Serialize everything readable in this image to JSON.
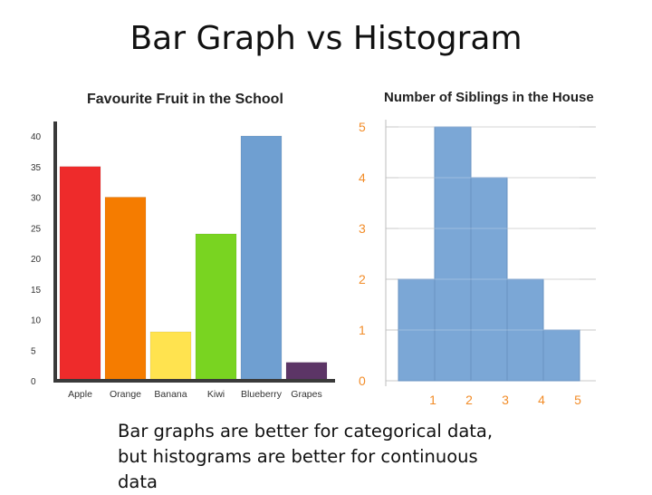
{
  "slide": {
    "title": "Bar Graph vs Histogram",
    "caption": "Bar graphs are better for categorical data, but histograms are better for continuous data"
  },
  "chart_data": [
    {
      "type": "bar",
      "title": "Favourite Fruit in the School",
      "categories": [
        "Apple",
        "Orange",
        "Banana",
        "Kiwi",
        "Blueberry",
        "Grapes"
      ],
      "values": [
        35,
        30,
        8,
        24,
        40,
        3
      ],
      "colors": [
        "#ee2b2b",
        "#f57c00",
        "#ffe34f",
        "#79d421",
        "#6f9fd1",
        "#5c3566"
      ],
      "ylim": [
        0,
        40
      ],
      "yticks": [
        "0",
        "5",
        "10",
        "15",
        "20",
        "25",
        "30",
        "35",
        "40"
      ],
      "xlabel": "",
      "ylabel": "",
      "grid": false
    },
    {
      "type": "bar",
      "title": "Number of Siblings in the House",
      "categories": [
        "1",
        "2",
        "3",
        "4",
        "5"
      ],
      "values": [
        2,
        5,
        4,
        2,
        1
      ],
      "bar_color": "#7ba7d6",
      "ylim": [
        0,
        5
      ],
      "yticks": [
        "0",
        "1",
        "2",
        "3",
        "4",
        "5"
      ],
      "tick_color": "#f28c28",
      "xlabel": "",
      "ylabel": "",
      "grid": true
    }
  ]
}
